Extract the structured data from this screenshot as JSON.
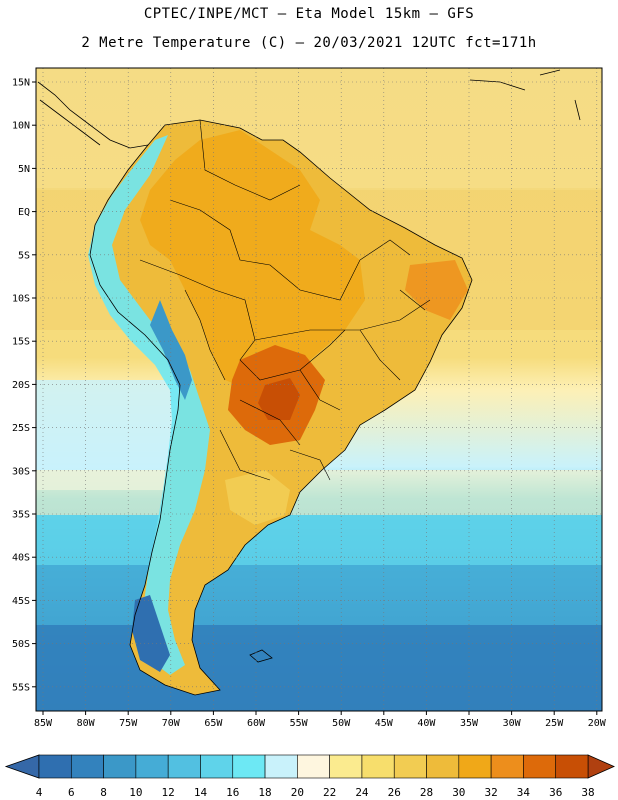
{
  "header": {
    "line1": "CPTEC/INPE/MCT –  Eta Model 15km – GFS",
    "line2": "2 Metre Temperature (C) – 20/03/2021 12UTC fct=171h"
  },
  "axes": {
    "lat_labels": [
      "15N",
      "10N",
      "5N",
      "EQ",
      "5S",
      "10S",
      "15S",
      "20S",
      "25S",
      "30S",
      "35S",
      "40S",
      "45S",
      "50S",
      "55S"
    ],
    "lon_labels": [
      "85W",
      "80W",
      "75W",
      "70W",
      "65W",
      "60W",
      "55W",
      "50W",
      "45W",
      "40W",
      "35W",
      "30W",
      "25W",
      "20W"
    ]
  },
  "colorbar": {
    "labels": [
      "4",
      "6",
      "8",
      "10",
      "12",
      "14",
      "16",
      "18",
      "20",
      "22",
      "24",
      "26",
      "28",
      "30",
      "32",
      "34",
      "36",
      "38"
    ],
    "colors": [
      "#2f6fb0",
      "#3382bd",
      "#3b98c8",
      "#45acd6",
      "#52c0e1",
      "#5fd3ea",
      "#6de8f4",
      "#c9f2fb",
      "#fef6df",
      "#fbeb8f",
      "#f7de6c",
      "#f2cc52",
      "#eebb3a",
      "#f0a818",
      "#ed8e1c",
      "#dd6a0a",
      "#c84f05"
    ],
    "end_low": "#3568a8",
    "end_high": "#b04010"
  }
}
